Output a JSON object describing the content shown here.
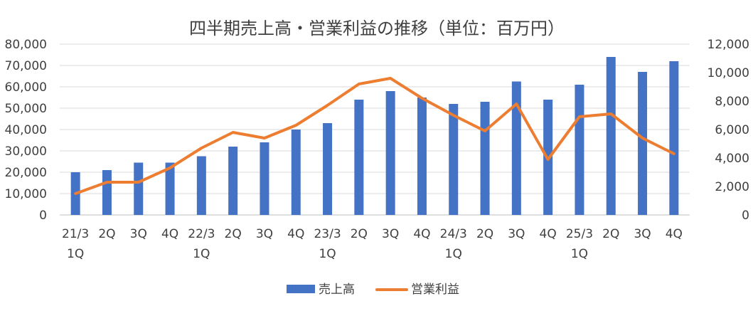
{
  "chart_data": {
    "type": "bar+line",
    "title": "四半期売上高・営業利益の推移（単位：百万円）",
    "categories": [
      [
        "21/3",
        "1Q"
      ],
      [
        "2Q"
      ],
      [
        "3Q"
      ],
      [
        "4Q"
      ],
      [
        "22/3",
        "1Q"
      ],
      [
        "2Q"
      ],
      [
        "3Q"
      ],
      [
        "4Q"
      ],
      [
        "23/3",
        "1Q"
      ],
      [
        "2Q"
      ],
      [
        "3Q"
      ],
      [
        "4Q"
      ],
      [
        "24/3",
        "1Q"
      ],
      [
        "2Q"
      ],
      [
        "3Q"
      ],
      [
        "4Q"
      ],
      [
        "25/3",
        "1Q"
      ],
      [
        "2Q"
      ],
      [
        "3Q"
      ],
      [
        "4Q"
      ]
    ],
    "series": [
      {
        "name": "売上高",
        "type": "bar",
        "axis": "left",
        "color": "#4472C4",
        "values": [
          20000,
          21000,
          24500,
          24500,
          27500,
          32000,
          34000,
          40000,
          43000,
          54000,
          58000,
          55000,
          52000,
          53000,
          62500,
          54000,
          61000,
          74000,
          67000,
          72000
        ]
      },
      {
        "name": "営業利益",
        "type": "line",
        "axis": "right",
        "color": "#ED7D31",
        "values": [
          1500,
          2300,
          2300,
          3300,
          4700,
          5800,
          5400,
          6300,
          7700,
          9200,
          9600,
          8200,
          7000,
          5900,
          7800,
          3900,
          6900,
          7100,
          5400,
          4300
        ]
      }
    ],
    "y_left": {
      "range": [
        0,
        80000
      ],
      "ticks": [
        "0",
        "10,000",
        "20,000",
        "30,000",
        "40,000",
        "50,000",
        "60,000",
        "70,000",
        "80,000"
      ]
    },
    "y_right": {
      "range": [
        0,
        12000
      ],
      "ticks": [
        "0",
        "2,000",
        "4,000",
        "6,000",
        "8,000",
        "10,000",
        "12,000"
      ]
    },
    "grid": true,
    "legend_position": "bottom"
  }
}
